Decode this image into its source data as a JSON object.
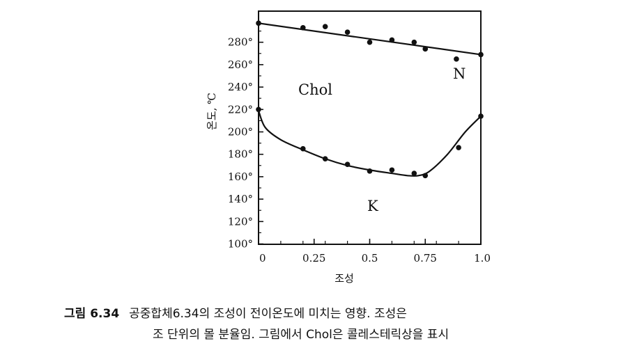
{
  "chart_data": {
    "type": "scatter",
    "xlabel": "조성",
    "ylabel": "온도, ℃",
    "xlim": [
      0,
      1.0
    ],
    "ylim": [
      100,
      310
    ],
    "x_ticks": [
      "0",
      "0.25",
      "0.5",
      "0.75",
      "1.0"
    ],
    "y_ticks": [
      "100°",
      "120°",
      "140°",
      "160°",
      "180°",
      "200°",
      "220°",
      "240°",
      "260°",
      "280°"
    ],
    "regions": {
      "chol": "Chol",
      "n": "N",
      "k": "K"
    },
    "series": [
      {
        "points_x": [
          0,
          0.2,
          0.3,
          0.4,
          0.5,
          0.6,
          0.7,
          0.75,
          0.89,
          1.0
        ],
        "points_y": [
          297,
          293,
          294,
          289,
          280,
          282,
          280,
          274,
          265,
          269
        ],
        "line_x": [
          0,
          1.0
        ],
        "line_y": [
          297,
          269
        ]
      },
      {
        "points_x": [
          0,
          0.2,
          0.3,
          0.4,
          0.5,
          0.6,
          0.7,
          0.75,
          0.9,
          1.0
        ],
        "points_y": [
          220,
          185,
          176,
          171,
          165,
          166,
          163,
          161,
          186,
          214
        ],
        "line_x": [
          0,
          0.03,
          0.1,
          0.2,
          0.3,
          0.4,
          0.5,
          0.6,
          0.67,
          0.72,
          0.77,
          0.85,
          0.93,
          1.0
        ],
        "line_y": [
          219,
          204,
          193,
          184,
          176,
          170,
          166,
          163,
          161,
          161,
          165,
          180,
          200,
          214
        ]
      }
    ]
  },
  "caption": {
    "label": "그림 6.34",
    "line1": "공중합체6.34의  조성이 전이온도에 미치는 영향.  조성은 ",
    "line2": "조 단위의 몰 분율임. 그림에서 Chol은 콜레스테릭상을 표시"
  }
}
